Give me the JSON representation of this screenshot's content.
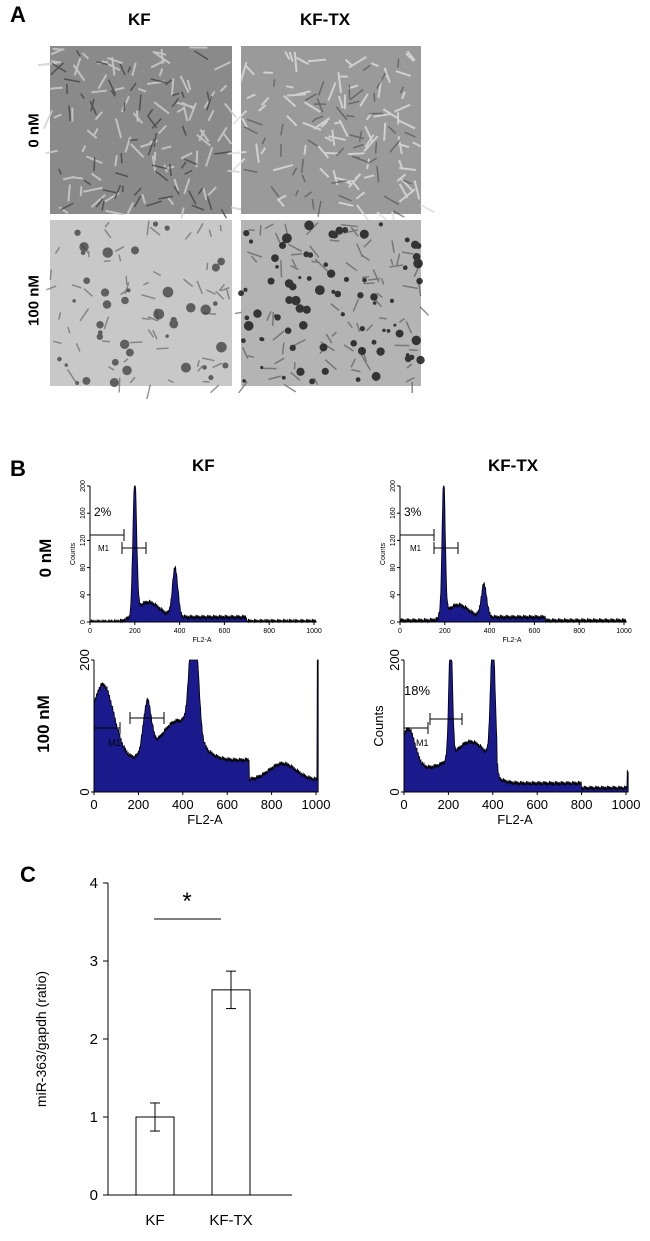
{
  "panel_a": {
    "label": "A",
    "col_headers": [
      "KF",
      "KF-TX"
    ],
    "row_labels": [
      "0 nM",
      "100 nM"
    ]
  },
  "panel_b": {
    "label": "B",
    "col_headers": [
      "KF",
      "KF-TX"
    ],
    "row_labels": [
      "0 nM",
      "100 nM"
    ],
    "histograms": [
      {
        "id": "kf-0",
        "percent_label": "2%",
        "marker_label": "M1",
        "ylabel": "Counts",
        "xlabel": "FL2-A",
        "y_ticks": [
          "0",
          "40",
          "80",
          "120",
          "160",
          "200"
        ],
        "x_ticks": [
          "0",
          "200",
          "400",
          "600",
          "800",
          "1000"
        ]
      },
      {
        "id": "kftx-0",
        "percent_label": "3%",
        "marker_label": "M1",
        "ylabel": "Counts",
        "xlabel": "FL2-A",
        "y_ticks": [
          "0",
          "40",
          "80",
          "120",
          "160",
          "200"
        ],
        "x_ticks": [
          "0",
          "200",
          "400",
          "600",
          "800",
          "1000"
        ]
      },
      {
        "id": "kf-100",
        "percent_label": "",
        "marker_label": "M1",
        "ylabel": "",
        "xlabel": "FL2-A",
        "y_ticks": [
          "0",
          "200"
        ],
        "x_ticks": [
          "0",
          "200",
          "400",
          "600",
          "800",
          "1000"
        ]
      },
      {
        "id": "kftx-100",
        "percent_label": "18%",
        "marker_label": "M1",
        "ylabel": "Counts",
        "xlabel": "FL2-A",
        "y_ticks": [
          "0",
          "200"
        ],
        "x_ticks": [
          "0",
          "200",
          "400",
          "600",
          "800",
          "1000"
        ]
      }
    ],
    "fill_color": "#1a1a8c"
  },
  "panel_c": {
    "label": "C",
    "significance": "*"
  },
  "chart_data": {
    "type": "bar",
    "categories": [
      "KF",
      "KF-TX"
    ],
    "values": [
      1.0,
      2.63
    ],
    "errors": [
      0.18,
      0.24
    ],
    "title": "",
    "xlabel": "",
    "ylabel": "miR-363/gapdh (ratio)",
    "ylim": [
      0,
      4
    ],
    "y_ticks": [
      "0",
      "1",
      "2",
      "3",
      "4"
    ],
    "grid": false
  }
}
